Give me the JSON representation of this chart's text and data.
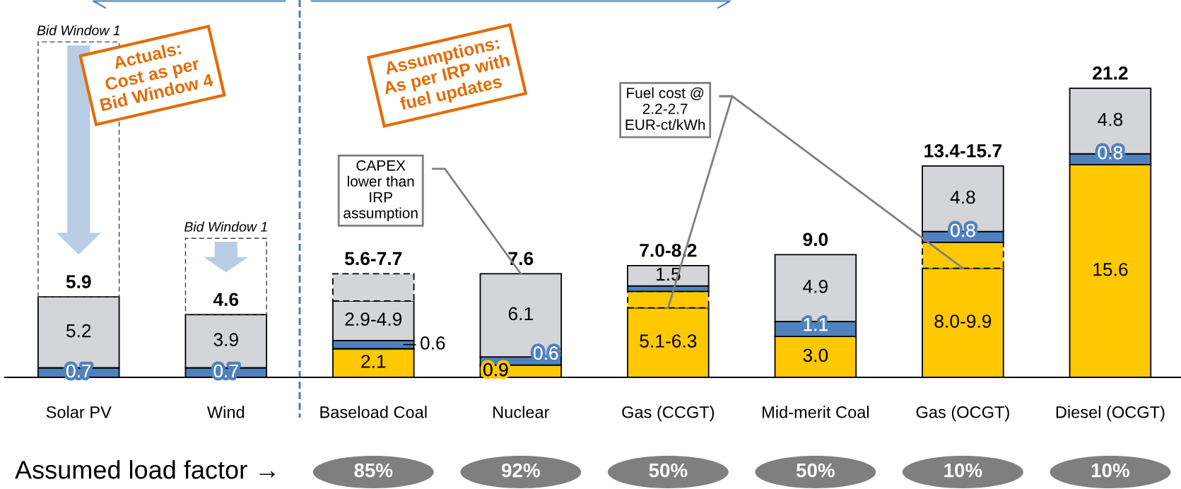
{
  "chart_data": [
    {
      "type": "bar",
      "stacked": true,
      "categories": [
        "Solar PV",
        "Wind",
        "Baseload Coal",
        "Nuclear",
        "Gas (CCGT)",
        "Mid-merit Coal",
        "Gas (OCGT)",
        "Diesel (OCGT)"
      ],
      "series": [
        {
          "color": "#ffc800",
          "values": [
            null,
            null,
            2.1,
            0.9,
            5.1,
            3.0,
            8.0,
            15.6
          ],
          "value_labels": [
            null,
            null,
            "2.1",
            "0.9",
            "5.1-6.3",
            "3.0",
            "8.0-9.9",
            "15.6"
          ]
        },
        {
          "color": "#ffc800",
          "line_style": "dashed",
          "values": [
            null,
            null,
            null,
            null,
            1.2,
            null,
            1.9,
            null
          ]
        },
        {
          "color": "#4f81bd",
          "values": [
            0.7,
            0.7,
            0.6,
            0.6,
            0.4,
            1.1,
            0.8,
            0.8
          ],
          "value_labels": [
            "0.7",
            "0.7",
            "0.6",
            "0.6",
            null,
            "1.1",
            "0.8",
            "0.8"
          ]
        },
        {
          "color": "#d4d5d8",
          "values": [
            5.2,
            3.9,
            2.9,
            6.1,
            1.5,
            4.9,
            4.8,
            4.8
          ],
          "value_labels": [
            "5.2",
            "3.9",
            "2.9-4.9",
            "6.1",
            "1.5",
            "4.9",
            "4.8",
            "4.8"
          ]
        },
        {
          "color": "#d4d5d8",
          "line_style": "dashed",
          "values": [
            null,
            null,
            2.0,
            null,
            null,
            null,
            null,
            null
          ]
        },
        {
          "color": "#404040",
          "line_style": "dashed",
          "values": [
            18.7,
            5.6,
            null,
            null,
            null,
            null,
            null,
            null
          ]
        }
      ],
      "totals": [
        null,
        null,
        "5.6-7.7",
        "7.6",
        "7.0-8.2",
        "9.0",
        "13.4-15.7",
        "21.2"
      ],
      "annotations": [
        {
          "text": "5.9",
          "x": "Solar PV",
          "y": 5.9
        },
        {
          "text": "4.6",
          "x": "Wind",
          "y": 4.6
        },
        {
          "text": "Bid Window 1",
          "x": "Solar PV",
          "y": 24.6
        },
        {
          "text": "Bid Window 1",
          "x": "Wind",
          "y": 10.2
        },
        "Actuals:\nCost as per\nBid Window 4",
        "Assumptions:\nAs per IRP with\nfuel updates",
        {
          "text": "CAPEX\nlower than\nIRP\nassumption",
          "x": "Nuclear",
          "y": 7.6
        },
        {
          "text": "Fuel cost @\n2.2-2.7\nEUR-ct/kWh",
          "x": "Gas (CCGT)",
          "y": 5.1
        }
      ]
    },
    {
      "type": "other",
      "title": "Assumed load factor →",
      "categories": [
        null,
        null,
        "85%",
        "92%",
        "50%",
        "50%",
        "10%",
        "10%"
      ]
    }
  ]
}
